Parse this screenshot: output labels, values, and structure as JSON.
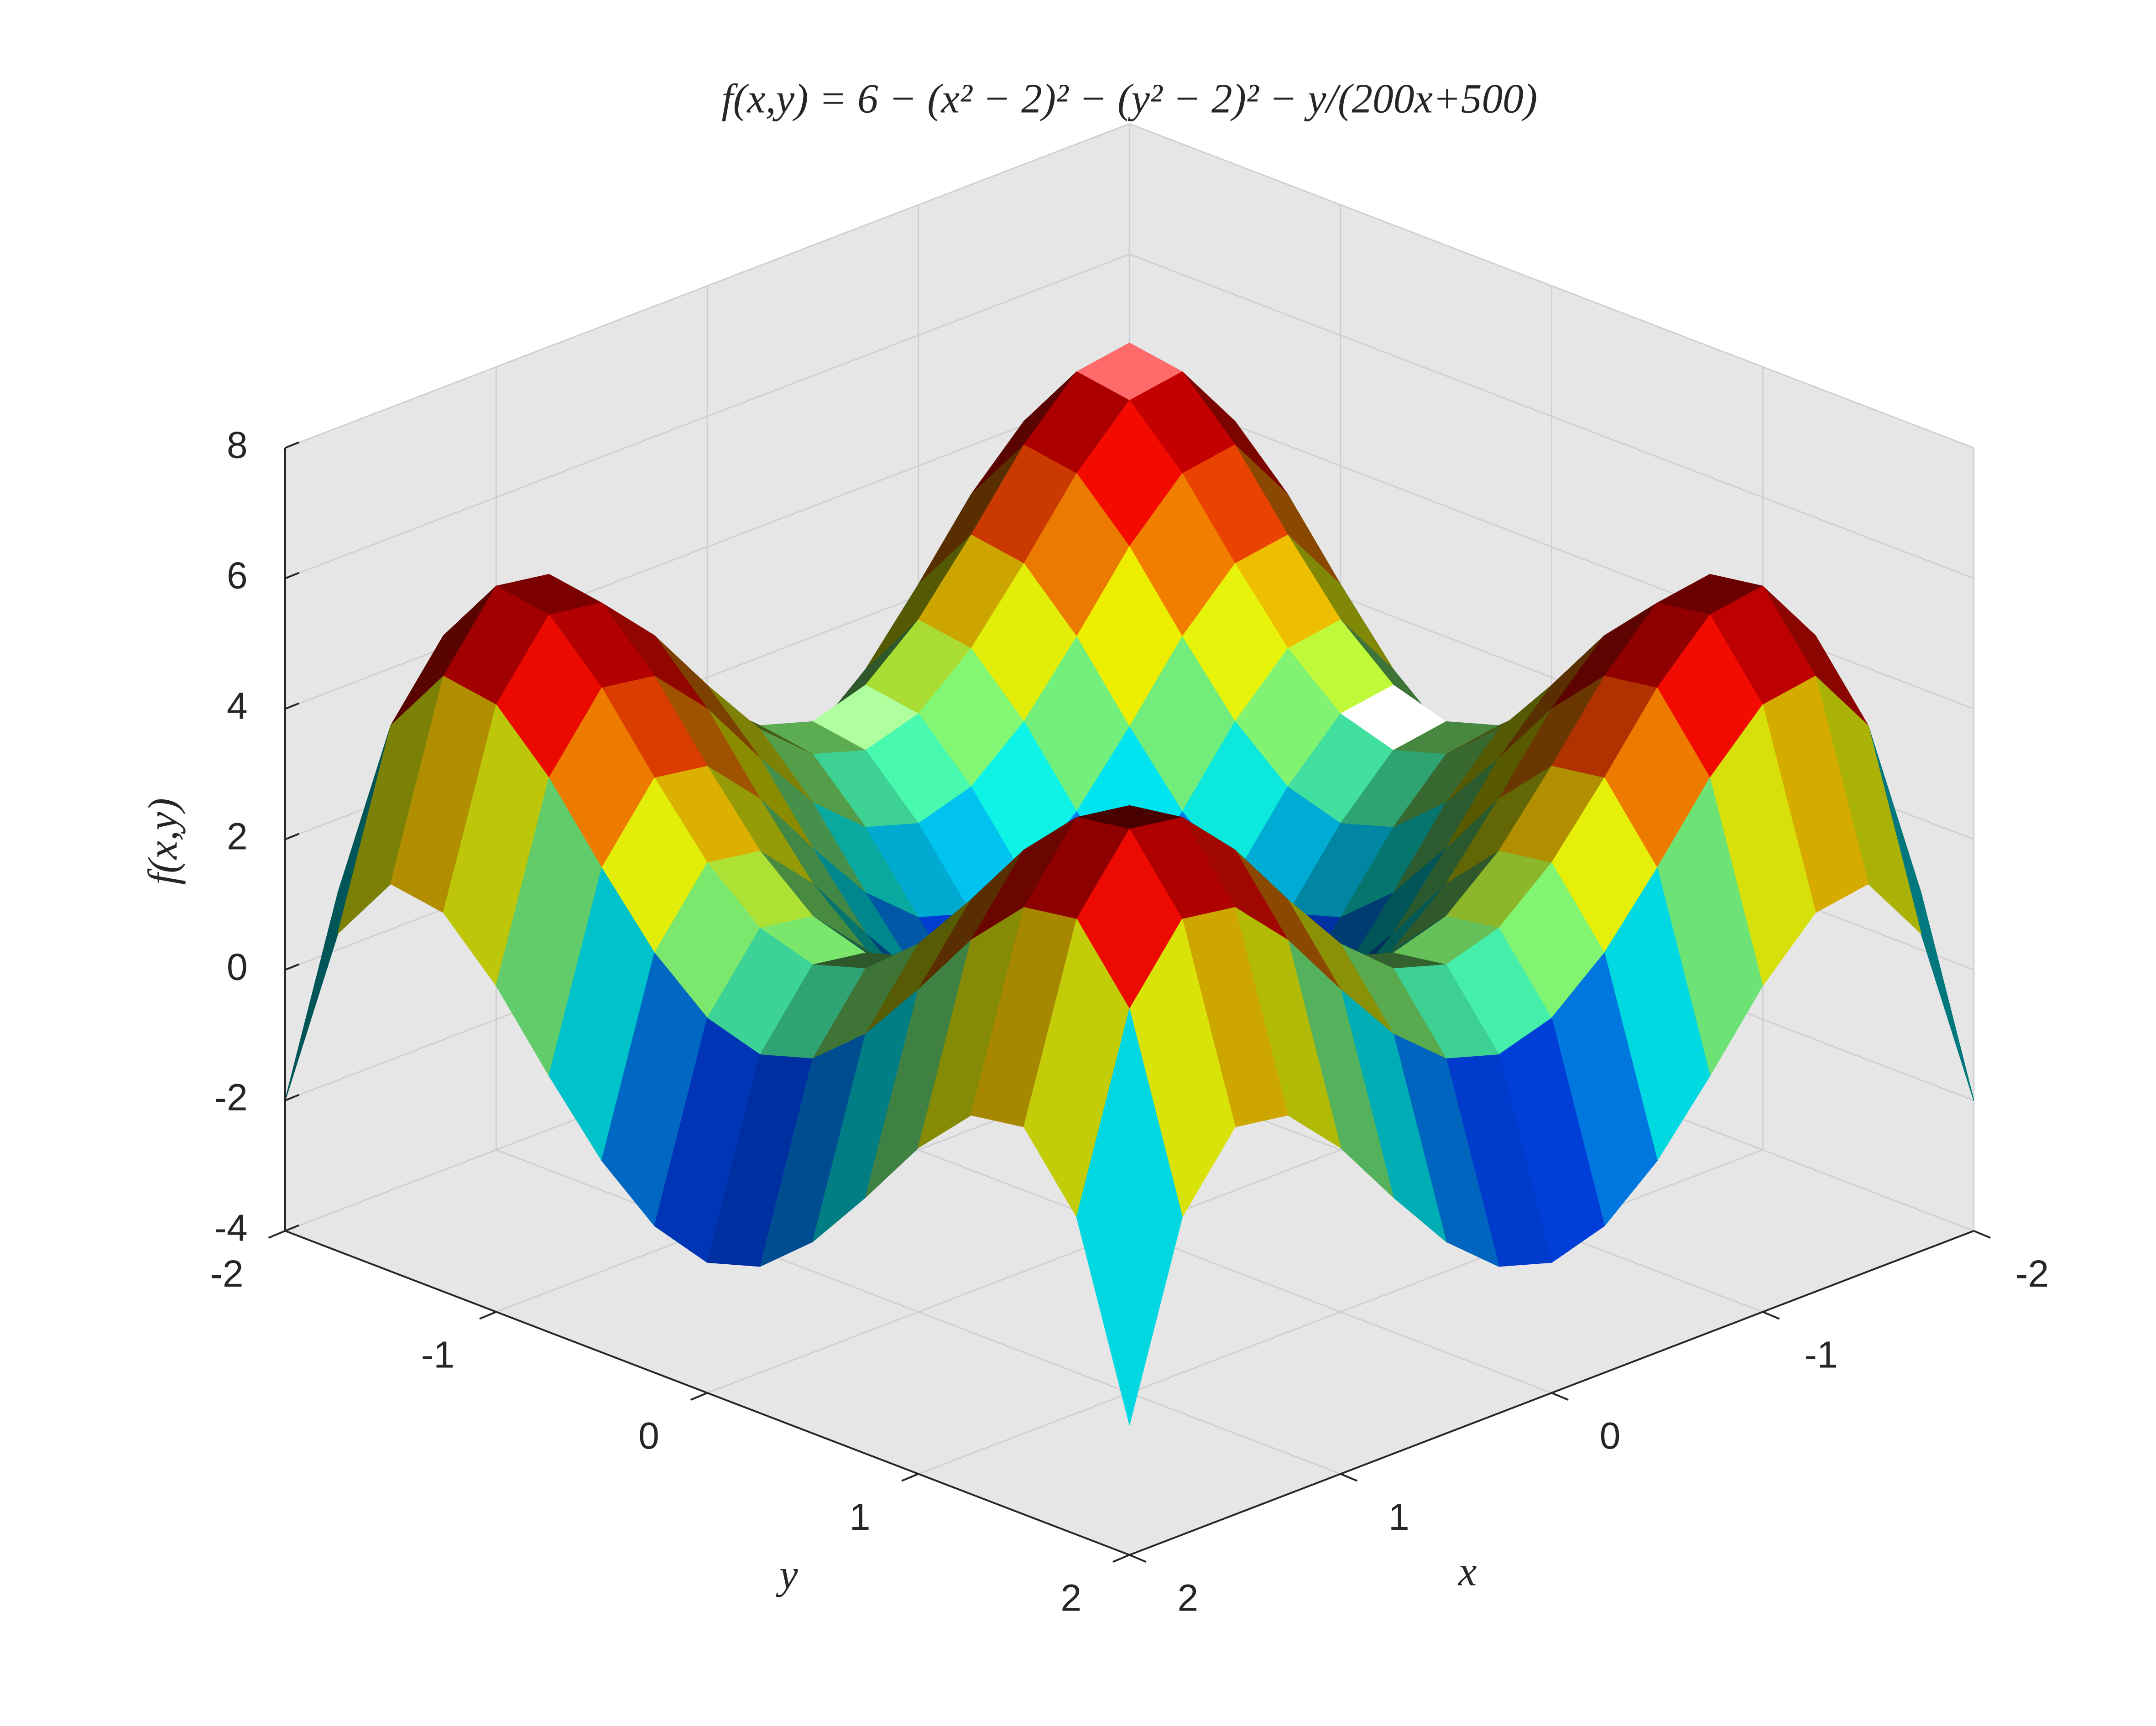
{
  "chart_data": {
    "type": "surface",
    "title": "f(x,y) = 6 − (x² − 2)² − (y² − 2)² − y/(200x+500)",
    "xlabel": "x",
    "ylabel": "y",
    "zlabel": "f(x,y)",
    "x": [
      -2,
      -1.75,
      -1.5,
      -1.25,
      -1,
      -0.75,
      -0.5,
      -0.25,
      0,
      0.25,
      0.5,
      0.75,
      1,
      1.25,
      1.5,
      1.75,
      2
    ],
    "y": [
      -2,
      -1.75,
      -1.5,
      -1.25,
      -1,
      -0.75,
      -0.5,
      -0.25,
      0,
      0.25,
      0.5,
      0.75,
      1,
      1.25,
      1.5,
      1.75,
      2
    ],
    "z": [
      [
        -2,
        0.87,
        1.94,
        1.81,
        1,
        -0.07,
        -1.06,
        -1.75,
        -2,
        -1.75,
        -1.06,
        -0.07,
        1,
        1.81,
        1.94,
        0.87,
        -2
      ],
      [
        0.87,
        3.74,
        4.81,
        4.68,
        3.87,
        2.8,
        1.81,
        1.12,
        0.87,
        1.12,
        1.81,
        2.8,
        3.87,
        4.68,
        4.81,
        3.74,
        0.87
      ],
      [
        1.94,
        4.81,
        5.88,
        5.75,
        4.94,
        3.87,
        2.88,
        2.19,
        1.94,
        2.19,
        2.88,
        3.87,
        4.94,
        5.75,
        5.88,
        4.81,
        1.94
      ],
      [
        1.81,
        4.68,
        5.75,
        5.62,
        4.81,
        3.74,
        2.75,
        2.06,
        1.81,
        2.06,
        2.75,
        3.74,
        4.81,
        5.62,
        5.75,
        4.68,
        1.81
      ],
      [
        1,
        3.87,
        4.94,
        4.81,
        4,
        2.93,
        1.94,
        1.25,
        1,
        1.25,
        1.94,
        2.93,
        4,
        4.81,
        4.94,
        3.87,
        1
      ],
      [
        -0.07,
        2.8,
        3.87,
        3.74,
        2.93,
        1.86,
        0.87,
        0.18,
        -0.07,
        0.18,
        0.87,
        1.86,
        2.93,
        3.74,
        3.87,
        2.8,
        -0.07
      ],
      [
        -1.06,
        1.81,
        2.88,
        2.75,
        1.94,
        0.87,
        -0.12,
        -0.81,
        -1.06,
        -0.81,
        -0.12,
        0.87,
        1.94,
        2.75,
        2.88,
        1.81,
        -1.06
      ],
      [
        -1.75,
        1.12,
        2.19,
        2.06,
        1.25,
        0.18,
        -0.81,
        -1.5,
        -1.75,
        -1.5,
        -0.81,
        0.18,
        1.25,
        2.06,
        2.19,
        1.12,
        -1.75
      ],
      [
        -2,
        0.87,
        1.94,
        1.81,
        1,
        -0.07,
        -1.06,
        -1.75,
        -2,
        -1.75,
        -1.06,
        -0.07,
        1,
        1.81,
        1.94,
        0.87,
        -2
      ],
      [
        -1.75,
        1.12,
        2.19,
        2.06,
        1.25,
        0.18,
        -0.81,
        -1.5,
        -1.75,
        -1.5,
        -0.81,
        0.18,
        1.25,
        2.06,
        2.19,
        1.12,
        -1.75
      ],
      [
        -1.06,
        1.81,
        2.88,
        2.75,
        1.94,
        0.87,
        -0.12,
        -0.81,
        -1.06,
        -0.81,
        -0.12,
        0.87,
        1.94,
        2.75,
        2.88,
        1.81,
        -1.06
      ],
      [
        -0.07,
        2.8,
        3.87,
        3.74,
        2.93,
        1.86,
        0.87,
        0.18,
        -0.07,
        0.18,
        0.87,
        1.86,
        2.93,
        3.74,
        3.87,
        2.8,
        -0.07
      ],
      [
        1,
        3.87,
        4.94,
        4.81,
        4,
        2.93,
        1.94,
        1.25,
        1,
        1.25,
        1.94,
        2.93,
        4,
        4.81,
        4.94,
        3.87,
        1
      ],
      [
        1.81,
        4.68,
        5.75,
        5.62,
        4.81,
        3.74,
        2.75,
        2.06,
        1.81,
        2.06,
        2.75,
        3.74,
        4.81,
        5.62,
        5.75,
        4.68,
        1.81
      ],
      [
        1.94,
        4.81,
        5.88,
        5.75,
        4.94,
        3.87,
        2.88,
        2.19,
        1.94,
        2.19,
        2.88,
        3.87,
        4.94,
        5.75,
        5.88,
        4.81,
        1.94
      ],
      [
        0.87,
        3.74,
        4.81,
        4.68,
        3.87,
        2.8,
        1.81,
        1.12,
        0.87,
        1.12,
        1.81,
        2.8,
        3.87,
        4.68,
        4.81,
        3.74,
        0.87
      ],
      [
        -2,
        0.87,
        1.94,
        1.81,
        1,
        -0.07,
        -1.06,
        -1.75,
        -2,
        -1.75,
        -1.06,
        -0.07,
        1,
        1.81,
        1.94,
        0.87,
        -2
      ]
    ],
    "xlim": [
      -2,
      2
    ],
    "ylim": [
      -2,
      2
    ],
    "zlim": [
      -4,
      8
    ],
    "xticks": [
      -2,
      -1,
      0,
      1,
      2
    ],
    "yticks": [
      -2,
      -1,
      0,
      1,
      2
    ],
    "zticks": [
      -4,
      -2,
      0,
      2,
      4,
      6,
      8
    ],
    "grid": true,
    "colormap": "jet"
  }
}
